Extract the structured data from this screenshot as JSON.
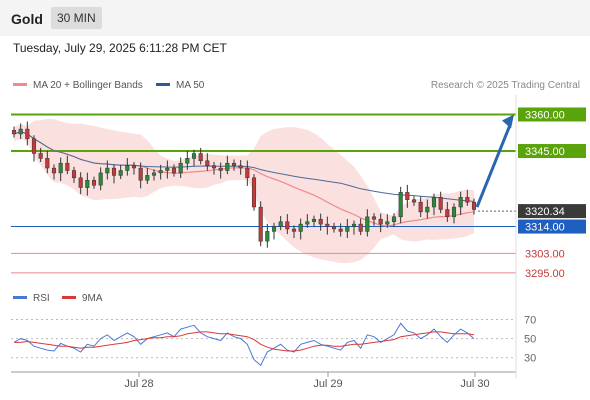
{
  "header": {
    "title": "Gold",
    "timeframe": "30 MIN"
  },
  "datetime": "Tuesday, July 29, 2025 6:11:28 PM CET",
  "legend": {
    "ma20_label": "MA 20 + Bollinger Bands",
    "ma50_label": "MA 50",
    "rsi_label": "RSI",
    "ma9_label": "9MA"
  },
  "copyright": "Research © 2025 Trading Central",
  "colors": {
    "green_level": "#5aa30a",
    "blue_level": "#1f5fbf",
    "red_level": "#e88888",
    "ma20": "#f08a8a",
    "ma50": "#4a6a9a",
    "band_fill": "#fadada",
    "candle_up": "#2a8a3a",
    "candle_down": "#c33a3a",
    "arrow": "#2a66b0",
    "rsi_line": "#4a78d8",
    "rsi_ma": "#d83a3a"
  },
  "chart_data": {
    "type": "candlestick",
    "instrument": "Gold",
    "timeframe": "30 MIN",
    "x_ticks": [
      "Jul 28",
      "Jul 29",
      "Jul 30"
    ],
    "price_ylim": [
      3290,
      3368
    ],
    "levels": [
      {
        "label": "3360.00",
        "value": 3360,
        "kind": "resistance"
      },
      {
        "label": "3345.00",
        "value": 3345,
        "kind": "resistance"
      },
      {
        "label": "3320.34",
        "value": 3320.34,
        "kind": "current"
      },
      {
        "label": "3314.00",
        "value": 3314,
        "kind": "pivot"
      },
      {
        "label": "3303.00",
        "value": 3303,
        "kind": "support"
      },
      {
        "label": "3295.00",
        "value": 3295,
        "kind": "support"
      }
    ],
    "forecast_arrow": {
      "from": 3322,
      "to": 3360
    },
    "closes": [
      3352,
      3354,
      3350,
      3344,
      3342,
      3338,
      3336,
      3340,
      3337,
      3334,
      3330,
      3333,
      3331,
      3336,
      3338,
      3335,
      3337,
      3339,
      3338,
      3333,
      3335,
      3336,
      3337,
      3338,
      3336,
      3340,
      3342,
      3344,
      3341,
      3339,
      3338,
      3337,
      3340,
      3339,
      3338,
      3334,
      3322,
      3308,
      3312,
      3314,
      3316,
      3313,
      3312,
      3315,
      3316,
      3317,
      3315,
      3314,
      3313,
      3312,
      3314,
      3315,
      3312,
      3318,
      3317,
      3315,
      3316,
      3318,
      3328,
      3325,
      3324,
      3320,
      3322,
      3326,
      3321,
      3318,
      3322,
      3326,
      3324,
      3321
    ],
    "rsi": {
      "yticks": [
        70,
        50,
        30
      ],
      "ylim": [
        15,
        80
      ],
      "rsi_values": [
        46,
        50,
        48,
        42,
        40,
        38,
        37,
        45,
        42,
        40,
        36,
        44,
        42,
        50,
        54,
        48,
        52,
        56,
        52,
        44,
        50,
        52,
        54,
        56,
        52,
        60,
        62,
        64,
        56,
        52,
        50,
        48,
        56,
        52,
        50,
        44,
        28,
        22,
        36,
        40,
        44,
        38,
        36,
        44,
        46,
        48,
        44,
        42,
        40,
        38,
        46,
        48,
        40,
        54,
        52,
        46,
        50,
        54,
        66,
        58,
        56,
        50,
        54,
        60,
        52,
        46,
        54,
        60,
        56,
        50
      ],
      "ma9_values": [
        46,
        46,
        47,
        46,
        45,
        44,
        43,
        42,
        42,
        41,
        40,
        41,
        41,
        42,
        43,
        44,
        45,
        46,
        48,
        49,
        50,
        51,
        51,
        52,
        52,
        53,
        55,
        56,
        57,
        57,
        56,
        55,
        55,
        54,
        53,
        52,
        49,
        44,
        41,
        39,
        38,
        37,
        37,
        38,
        40,
        42,
        43,
        43,
        42,
        42,
        43,
        44,
        44,
        45,
        46,
        47,
        48,
        49,
        52,
        53,
        54,
        55,
        56,
        57,
        57,
        56,
        55,
        55,
        55,
        54
      ]
    }
  }
}
